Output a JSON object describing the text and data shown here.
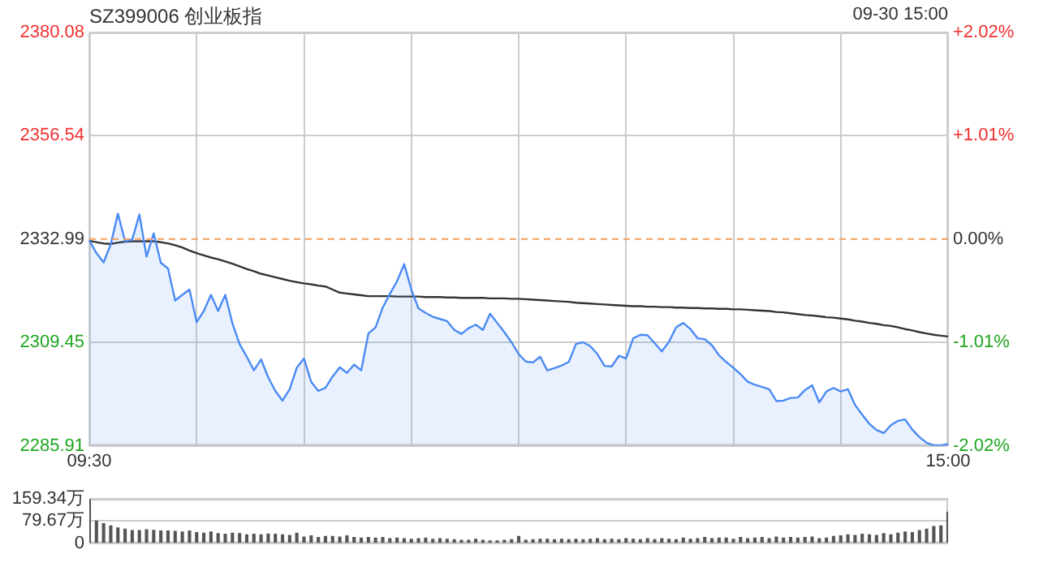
{
  "chart_data": [
    {
      "type": "line",
      "title": "SZ399006 创业板指",
      "annotations": [
        "09-30 15:00"
      ],
      "categories": [
        "09:30",
        null,
        null,
        null,
        null,
        null,
        null,
        null,
        null,
        null,
        null,
        null,
        null,
        null,
        null,
        null,
        null,
        null,
        null,
        null,
        null,
        null,
        null,
        null,
        null,
        null,
        null,
        null,
        null,
        null,
        null,
        null,
        null,
        null,
        null,
        null,
        null,
        null,
        null,
        null,
        null,
        null,
        null,
        null,
        null,
        null,
        null,
        null,
        null,
        null,
        null,
        null,
        null,
        null,
        null,
        null,
        null,
        null,
        null,
        null,
        null,
        null,
        null,
        null,
        null,
        null,
        null,
        null,
        null,
        null,
        null,
        null,
        null,
        null,
        null,
        null,
        null,
        null,
        null,
        null,
        null,
        null,
        null,
        null,
        null,
        null,
        null,
        null,
        null,
        null,
        null,
        null,
        null,
        null,
        null,
        null,
        null,
        null,
        null,
        null,
        null,
        null,
        null,
        null,
        null,
        null,
        null,
        null,
        null,
        null,
        null,
        null,
        null,
        null,
        null,
        null,
        null,
        null,
        null,
        null,
        "15:00"
      ],
      "ylim": [
        2285.91,
        2380.08
      ],
      "yticks": [
        2285.91,
        2309.45,
        2332.99,
        2356.54,
        2380.08
      ],
      "y2lim": [
        -2.02,
        2.02
      ],
      "y2ticks": [
        {
          "value": -2.02,
          "label": "-2.02%"
        },
        {
          "value": -1.01,
          "label": "-1.01%"
        },
        {
          "value": 0,
          "label": "0.00%"
        },
        {
          "value": 1.01,
          "label": "+1.01%"
        },
        {
          "value": 2.02,
          "label": "+2.02%"
        }
      ],
      "grid": true,
      "legend": false,
      "marker": "none",
      "line_style": "solid",
      "ref_lines": [
        {
          "axis": "y",
          "value": 2332.99,
          "color": "#f0a060",
          "line_style": "dashed"
        }
      ],
      "series": [
        {
          "type": "area",
          "color": "#4a8af4",
          "values": [
            2332.7,
            2329.8,
            2327.7,
            2331.8,
            2338.8,
            2332.5,
            2332.9,
            2338.6,
            2329.0,
            2334.3,
            2327.6,
            2326.3,
            2319.0,
            2320.3,
            2321.5,
            2314.1,
            2316.6,
            2320.3,
            2316.6,
            2320.3,
            2313.8,
            2309.1,
            2306.2,
            2303.1,
            2305.6,
            2301.5,
            2298.4,
            2296.2,
            2298.8,
            2303.7,
            2305.8,
            2300.5,
            2298.4,
            2299.1,
            2301.7,
            2303.8,
            2302.5,
            2304.4,
            2303.1,
            2311.5,
            2312.9,
            2317.4,
            2320.5,
            2323.4,
            2327.3,
            2321.5,
            2317.2,
            2316.2,
            2315.3,
            2314.8,
            2314.3,
            2312.3,
            2311.4,
            2312.7,
            2313.5,
            2312.3,
            2316.0,
            2313.9,
            2311.8,
            2309.5,
            2306.8,
            2305.1,
            2304.9,
            2306.2,
            2303.1,
            2303.6,
            2304.2,
            2305.0,
            2309.1,
            2309.5,
            2308.6,
            2306.8,
            2304.1,
            2304.0,
            2306.4,
            2305.8,
            2310.4,
            2311.2,
            2311.1,
            2309.3,
            2307.4,
            2309.6,
            2312.9,
            2313.9,
            2312.5,
            2310.4,
            2310.2,
            2308.8,
            2306.5,
            2305.0,
            2303.7,
            2302.2,
            2300.5,
            2299.8,
            2299.3,
            2298.8,
            2296.1,
            2296.2,
            2296.8,
            2296.9,
            2298.6,
            2299.7,
            2295.8,
            2298.3,
            2299.1,
            2298.3,
            2298.8,
            2295.2,
            2293.0,
            2290.9,
            2289.5,
            2288.8,
            2290.6,
            2291.6,
            2291.9,
            2289.6,
            2287.9,
            2286.6,
            2286.0,
            2286.0,
            2286.3
          ]
        },
        {
          "type": "line",
          "color": "#333333",
          "values": [
            2332.6,
            2332.3,
            2332.0,
            2331.9,
            2332.2,
            2332.4,
            2332.5,
            2332.5,
            2332.5,
            2332.5,
            2332.3,
            2332.0,
            2331.6,
            2331.1,
            2330.4,
            2329.8,
            2329.3,
            2328.8,
            2328.4,
            2327.9,
            2327.4,
            2326.8,
            2326.2,
            2325.7,
            2325.1,
            2324.7,
            2324.3,
            2323.9,
            2323.5,
            2323.2,
            2322.9,
            2322.7,
            2322.4,
            2322.2,
            2321.5,
            2320.8,
            2320.6,
            2320.4,
            2320.2,
            2320.0,
            2320.0,
            2320.0,
            2320.0,
            2319.9,
            2319.9,
            2319.9,
            2319.9,
            2319.8,
            2319.8,
            2319.8,
            2319.7,
            2319.7,
            2319.6,
            2319.6,
            2319.6,
            2319.6,
            2319.5,
            2319.5,
            2319.5,
            2319.4,
            2319.4,
            2319.3,
            2319.2,
            2319.1,
            2319.0,
            2318.9,
            2318.8,
            2318.7,
            2318.5,
            2318.4,
            2318.3,
            2318.2,
            2318.1,
            2318.0,
            2317.9,
            2317.8,
            2317.7,
            2317.7,
            2317.6,
            2317.6,
            2317.5,
            2317.5,
            2317.4,
            2317.4,
            2317.3,
            2317.3,
            2317.2,
            2317.2,
            2317.1,
            2317.1,
            2317.0,
            2317.0,
            2316.9,
            2316.8,
            2316.7,
            2316.6,
            2316.4,
            2316.3,
            2316.1,
            2315.9,
            2315.7,
            2315.6,
            2315.4,
            2315.2,
            2315.1,
            2314.9,
            2314.7,
            2314.4,
            2314.2,
            2313.9,
            2313.7,
            2313.4,
            2313.2,
            2312.9,
            2312.5,
            2312.2,
            2311.8,
            2311.5,
            2311.2,
            2311.0,
            2310.8
          ]
        }
      ]
    },
    {
      "type": "bar",
      "color": "#555555",
      "categories": [
        null,
        null,
        null,
        null,
        null,
        null,
        null,
        null,
        null,
        null,
        null,
        null,
        null,
        null,
        null,
        null,
        null,
        null,
        null,
        null,
        null,
        null,
        null,
        null,
        null,
        null,
        null,
        null,
        null,
        null,
        null,
        null,
        null,
        null,
        null,
        null,
        null,
        null,
        null,
        null,
        null,
        null,
        null,
        null,
        null,
        null,
        null,
        null,
        null,
        null,
        null,
        null,
        null,
        null,
        null,
        null,
        null,
        null,
        null,
        null,
        null,
        null,
        null,
        null,
        null,
        null,
        null,
        null,
        null,
        null,
        null,
        null,
        null,
        null,
        null,
        null,
        null,
        null,
        null,
        null,
        null,
        null,
        null,
        null,
        null,
        null,
        null,
        null,
        null,
        null,
        null,
        null,
        null,
        null,
        null,
        null,
        null,
        null,
        null,
        null,
        null,
        null,
        null,
        null,
        null,
        null,
        null,
        null,
        null,
        null,
        null,
        null,
        null,
        null,
        null,
        null,
        null,
        null,
        null,
        null,
        null
      ],
      "ylim": [
        0,
        159.34
      ],
      "yticks": [
        0,
        {
          "value": 79.67,
          "label": "79.67万"
        },
        {
          "value": 159.34,
          "label": "159.34万"
        }
      ],
      "grid": "y",
      "legend": false,
      "values": [
        159,
        80,
        70,
        62,
        55,
        50,
        45,
        45,
        48,
        46,
        44,
        44,
        42,
        40,
        44,
        38,
        36,
        40,
        34,
        32,
        36,
        34,
        30,
        32,
        30,
        33,
        32,
        30,
        28,
        36,
        22,
        26,
        20,
        24,
        24,
        22,
        26,
        20,
        18,
        20,
        18,
        20,
        16,
        18,
        16,
        14,
        16,
        18,
        14,
        16,
        14,
        12,
        10,
        10,
        14,
        10,
        8,
        8,
        10,
        12,
        24,
        10,
        12,
        14,
        14,
        12,
        14,
        12,
        14,
        12,
        14,
        16,
        12,
        14,
        12,
        16,
        14,
        12,
        16,
        12,
        16,
        14,
        12,
        18,
        14,
        16,
        20,
        16,
        18,
        18,
        14,
        20,
        16,
        18,
        20,
        16,
        22,
        18,
        20,
        18,
        20,
        22,
        16,
        18,
        24,
        26,
        30,
        28,
        32,
        30,
        28,
        34,
        30,
        36,
        40,
        38,
        45,
        50,
        60,
        62,
        112
      ]
    }
  ]
}
